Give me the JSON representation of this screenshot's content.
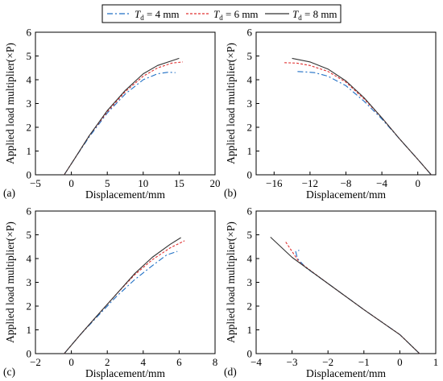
{
  "legend": {
    "items": [
      {
        "name_italic": "T",
        "name_sub": "d",
        "name_rest": "= 4 mm",
        "color": "#1f6fc5",
        "dash": "dashdot"
      },
      {
        "name_italic": "T",
        "name_sub": "d",
        "name_rest": "= 6 mm",
        "color": "#e03030",
        "dash": "dotted"
      },
      {
        "name_italic": "T",
        "name_sub": "d",
        "name_rest": "= 8 mm",
        "color": "#333333",
        "dash": "solid"
      }
    ]
  },
  "chart_data": [
    {
      "type": "line",
      "panel_label": "(a)",
      "xlabel": "Displacement/mm",
      "ylabel": "Applied load multiplier(×P)",
      "xlim": [
        -5,
        20
      ],
      "ylim": [
        0,
        6
      ],
      "xticks": [
        -5,
        0,
        5,
        10,
        15,
        20
      ],
      "yticks": [
        0,
        1,
        2,
        3,
        4,
        5,
        6
      ],
      "series": [
        {
          "name": "Td = 4 mm",
          "x": [
            -1.0,
            0.5,
            2.5,
            5.0,
            7.5,
            10.0,
            12.0,
            13.5,
            14.5
          ],
          "y": [
            0.0,
            0.7,
            1.6,
            2.6,
            3.4,
            4.0,
            4.25,
            4.32,
            4.3
          ]
        },
        {
          "name": "Td = 6 mm",
          "x": [
            -1.0,
            0.5,
            2.5,
            5.0,
            7.5,
            10.0,
            12.0,
            14.0,
            15.5
          ],
          "y": [
            0.0,
            0.7,
            1.65,
            2.65,
            3.5,
            4.15,
            4.5,
            4.7,
            4.75
          ]
        },
        {
          "name": "Td = 8 mm",
          "x": [
            -1.0,
            0.5,
            2.5,
            5.0,
            7.5,
            10.0,
            12.0,
            14.0,
            15.0
          ],
          "y": [
            0.0,
            0.7,
            1.65,
            2.7,
            3.55,
            4.25,
            4.6,
            4.8,
            4.9
          ]
        }
      ]
    },
    {
      "type": "line",
      "panel_label": "(b)",
      "xlabel": "Displacement/mm",
      "ylabel": "Applied load multiplier(×P)",
      "xlim": [
        -18,
        2
      ],
      "ylim": [
        0,
        6
      ],
      "xticks": [
        -16,
        -12,
        -8,
        -4,
        0
      ],
      "yticks": [
        0,
        1,
        2,
        3,
        4,
        5,
        6
      ],
      "series": [
        {
          "name": "Td = 4 mm",
          "x": [
            1.5,
            0.0,
            -2.0,
            -4.0,
            -6.0,
            -8.0,
            -10.0,
            -11.5,
            -12.5,
            -13.5
          ],
          "y": [
            0.0,
            0.65,
            1.5,
            2.35,
            3.1,
            3.75,
            4.15,
            4.3,
            4.33,
            4.35
          ]
        },
        {
          "name": "Td = 6 mm",
          "x": [
            1.5,
            0.0,
            -2.0,
            -4.0,
            -6.0,
            -8.0,
            -10.0,
            -12.0,
            -13.5,
            -15.0
          ],
          "y": [
            0.0,
            0.65,
            1.5,
            2.4,
            3.2,
            3.9,
            4.35,
            4.6,
            4.7,
            4.72
          ]
        },
        {
          "name": "Td = 8 mm",
          "x": [
            1.5,
            0.0,
            -2.0,
            -4.0,
            -6.0,
            -8.0,
            -10.0,
            -12.0,
            -14.0
          ],
          "y": [
            0.0,
            0.65,
            1.5,
            2.4,
            3.25,
            3.95,
            4.45,
            4.75,
            4.9
          ]
        }
      ]
    },
    {
      "type": "line",
      "panel_label": "(c)",
      "xlabel": "Displacement/mm",
      "ylabel": "Applied load multiplier(×P)",
      "xlim": [
        -2,
        8
      ],
      "ylim": [
        0,
        6
      ],
      "xticks": [
        -2,
        0,
        2,
        4,
        6,
        8
      ],
      "yticks": [
        0,
        1,
        2,
        3,
        4,
        5,
        6
      ],
      "series": [
        {
          "name": "Td = 4 mm",
          "x": [
            -0.4,
            0.5,
            1.5,
            2.5,
            3.5,
            4.5,
            5.3,
            5.9
          ],
          "y": [
            0.0,
            0.8,
            1.6,
            2.4,
            3.1,
            3.7,
            4.15,
            4.3
          ]
        },
        {
          "name": "Td = 6 mm",
          "x": [
            -0.4,
            0.5,
            1.5,
            2.5,
            3.5,
            4.5,
            5.5,
            6.3
          ],
          "y": [
            0.0,
            0.8,
            1.65,
            2.5,
            3.3,
            3.95,
            4.45,
            4.75
          ]
        },
        {
          "name": "Td = 8 mm",
          "x": [
            -0.4,
            0.5,
            1.5,
            2.5,
            3.5,
            4.5,
            5.5,
            6.1
          ],
          "y": [
            0.0,
            0.8,
            1.65,
            2.5,
            3.35,
            4.05,
            4.6,
            4.88
          ]
        }
      ]
    },
    {
      "type": "line",
      "panel_label": "(d)",
      "xlabel": "Displacement/mm",
      "ylabel": "Applied load multiplier(×P)",
      "xlim": [
        -4,
        1
      ],
      "ylim": [
        0,
        6
      ],
      "xticks": [
        -4,
        -3,
        -2,
        -1,
        0,
        1
      ],
      "yticks": [
        0,
        1,
        2,
        3,
        4,
        5,
        6
      ],
      "series": [
        {
          "name": "Td = 4 mm",
          "x": [
            0.55,
            0.0,
            -1.0,
            -2.0,
            -2.6,
            -2.85,
            -2.9,
            -2.8
          ],
          "y": [
            0.0,
            0.8,
            1.85,
            2.95,
            3.6,
            4.0,
            4.3,
            4.35
          ]
        },
        {
          "name": "Td = 6 mm",
          "x": [
            0.55,
            0.0,
            -1.0,
            -2.0,
            -2.8,
            -3.2
          ],
          "y": [
            0.0,
            0.8,
            1.85,
            2.95,
            3.85,
            4.75
          ]
        },
        {
          "name": "Td = 8 mm",
          "x": [
            0.55,
            0.0,
            -1.0,
            -2.0,
            -3.0,
            -3.6
          ],
          "y": [
            0.0,
            0.8,
            1.85,
            2.95,
            4.05,
            4.9
          ]
        }
      ]
    }
  ]
}
